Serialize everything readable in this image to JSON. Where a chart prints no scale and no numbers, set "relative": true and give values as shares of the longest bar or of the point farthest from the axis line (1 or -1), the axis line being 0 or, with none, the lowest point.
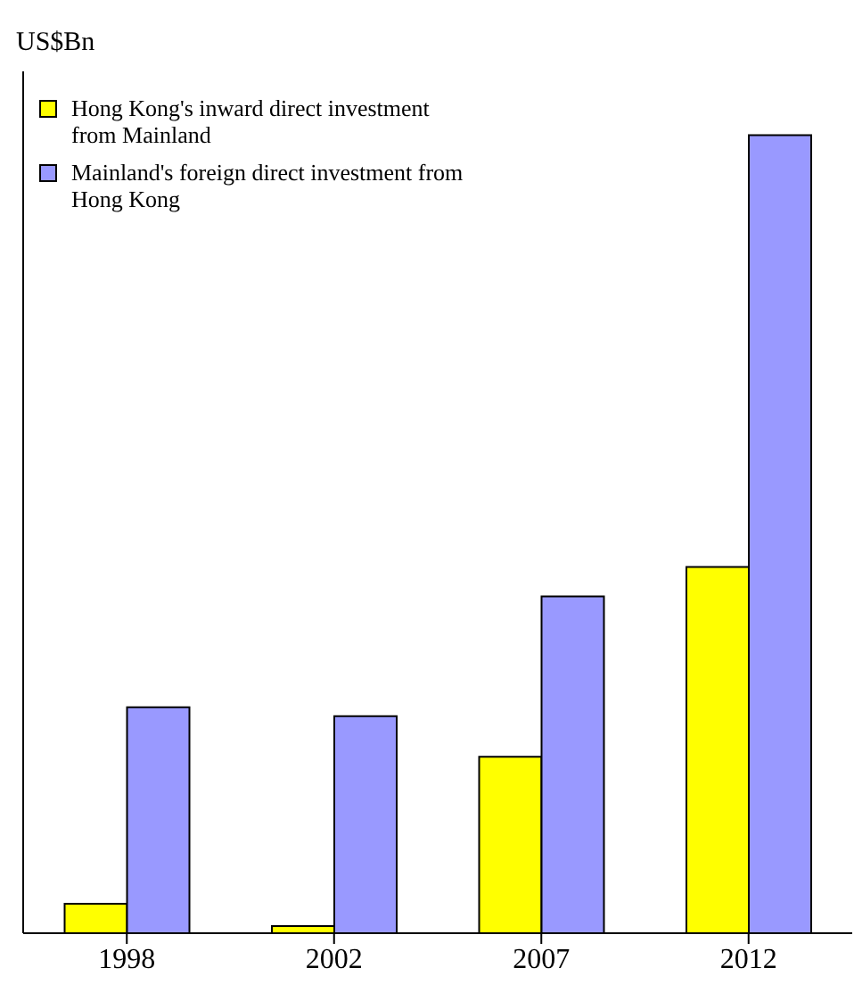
{
  "chart_data": {
    "type": "bar",
    "ylabel": "US$Bn",
    "relative": true,
    "legend": "top left",
    "categories": [
      "1998",
      "2002",
      "2007",
      "2012"
    ],
    "series": [
      {
        "name": "Hong Kong's inward direct investment from Mainland",
        "color": "#ffff00",
        "values": [
          0.037,
          0.009,
          0.221,
          0.459
        ]
      },
      {
        "name": "Mainland's foreign direct investment from Hong Kong",
        "color": "#9999ff",
        "values": [
          0.283,
          0.272,
          0.422,
          1
        ]
      }
    ]
  }
}
